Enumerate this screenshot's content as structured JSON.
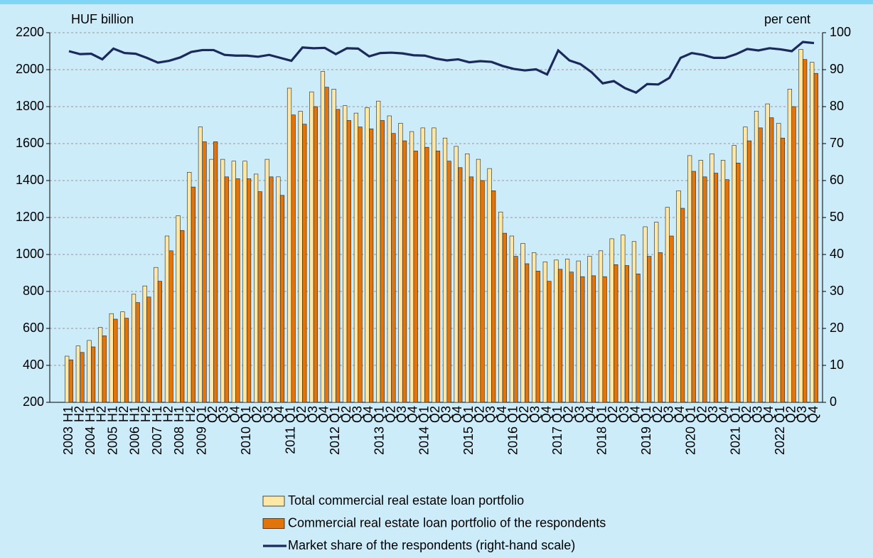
{
  "chart_data": {
    "type": "bar",
    "y_axis_label": "HUF billion",
    "y2_axis_label": "per cent",
    "categories": [
      "H1",
      "H2",
      "H1",
      "H2",
      "H1",
      "H2",
      "H1",
      "H2",
      "H1",
      "H2",
      "H1",
      "H2",
      "Q1",
      "Q2",
      "Q3",
      "Q4",
      "Q1",
      "Q2",
      "Q3",
      "Q4",
      "Q1",
      "Q2",
      "Q3",
      "Q4",
      "Q1",
      "Q2",
      "Q3",
      "Q4",
      "Q1",
      "Q2",
      "Q3",
      "Q4",
      "Q1",
      "Q2",
      "Q3",
      "Q4",
      "Q1",
      "Q2",
      "Q3",
      "Q4",
      "Q1",
      "Q2",
      "Q3",
      "Q4",
      "Q1",
      "Q2",
      "Q3",
      "Q4",
      "Q1",
      "Q2",
      "Q3",
      "Q4",
      "Q1",
      "Q2",
      "Q3",
      "Q4",
      "Q1",
      "Q2",
      "Q3",
      "Q4",
      "Q1",
      "Q2",
      "Q3",
      "Q4",
      "Q1",
      "Q2",
      "Q3",
      "Q4"
    ],
    "category_years": [
      "2003",
      null,
      "2004",
      null,
      "2005",
      null,
      "2006",
      null,
      "2007",
      null,
      "2008",
      null,
      "2009",
      null,
      null,
      null,
      "2010",
      null,
      null,
      null,
      "2011",
      null,
      null,
      null,
      "2012",
      null,
      null,
      null,
      "2013",
      null,
      null,
      null,
      "2014",
      null,
      null,
      null,
      "2015",
      null,
      null,
      null,
      "2016",
      null,
      null,
      null,
      "2017",
      null,
      null,
      null,
      "2018",
      null,
      null,
      null,
      "2019",
      null,
      null,
      null,
      "2020",
      null,
      null,
      null,
      "2021",
      null,
      null,
      null,
      "2022",
      null,
      null,
      null
    ],
    "series": [
      {
        "name": "Total commercial real estate loan portfolio",
        "type": "bar",
        "color": "#ffe7a6",
        "values": [
          450,
          505,
          535,
          605,
          680,
          690,
          785,
          830,
          930,
          1100,
          1210,
          1445,
          1690,
          1515,
          1515,
          1505,
          1505,
          1435,
          1515,
          1420,
          1900,
          1775,
          1880,
          1990,
          1895,
          1805,
          1765,
          1795,
          1830,
          1750,
          1710,
          1665,
          1685,
          1685,
          1630,
          1585,
          1545,
          1515,
          1465,
          1230,
          1100,
          1060,
          1010,
          960,
          970,
          975,
          965,
          990,
          1020,
          1085,
          1105,
          1070,
          1150,
          1175,
          1255,
          1345,
          1535,
          1510,
          1545,
          1510,
          1590,
          1690,
          1775,
          1815,
          1710,
          1895,
          2110,
          2040
        ]
      },
      {
        "name": "Commercial real estate loan portfolio of the respondents",
        "type": "bar",
        "color": "#e2740c",
        "values": [
          430,
          470,
          500,
          560,
          650,
          655,
          740,
          770,
          855,
          1020,
          1130,
          1365,
          1610,
          1610,
          1420,
          1410,
          1410,
          1340,
          1420,
          1320,
          1755,
          1705,
          1800,
          1905,
          1785,
          1725,
          1690,
          1680,
          1725,
          1655,
          1615,
          1560,
          1580,
          1560,
          1505,
          1470,
          1420,
          1400,
          1345,
          1115,
          990,
          950,
          910,
          855,
          920,
          905,
          880,
          885,
          880,
          945,
          940,
          895,
          990,
          1010,
          1100,
          1250,
          1450,
          1420,
          1440,
          1405,
          1495,
          1615,
          1685,
          1740,
          1630,
          1800,
          2055,
          1980
        ]
      },
      {
        "name": "Market share of the respondents (right-hand scale)",
        "type": "line",
        "axis": "y2",
        "color": "#1b2a5a",
        "values": [
          95,
          94.2,
          94.3,
          92.8,
          95.7,
          94.5,
          94.3,
          93.2,
          91.9,
          92.4,
          93.3,
          94.8,
          95.3,
          95.3,
          94,
          93.8,
          93.8,
          93.5,
          94,
          93.2,
          92.4,
          96,
          95.8,
          95.9,
          94.2,
          95.8,
          95.7,
          93.6,
          94.5,
          94.6,
          94.4,
          93.9,
          93.8,
          93,
          92.5,
          92.8,
          92,
          92.3,
          92.1,
          91,
          90.2,
          89.8,
          90.1,
          88.7,
          95.2,
          92.5,
          91.5,
          89.3,
          86.3,
          86.9,
          85,
          83.8,
          86.1,
          86,
          87.8,
          93.2,
          94.5,
          94,
          93.2,
          93.2,
          94.2,
          95.6,
          95.2,
          95.8,
          95.5,
          95,
          97.5,
          97.2
        ]
      }
    ],
    "ylim": [
      200,
      2200
    ],
    "yticks": [
      200,
      400,
      600,
      800,
      1000,
      1200,
      1400,
      1600,
      1800,
      2000,
      2200
    ],
    "y2lim": [
      0,
      100
    ],
    "y2ticks": [
      0,
      10,
      20,
      30,
      40,
      50,
      60,
      70,
      80,
      90,
      100
    ],
    "grid": true
  }
}
